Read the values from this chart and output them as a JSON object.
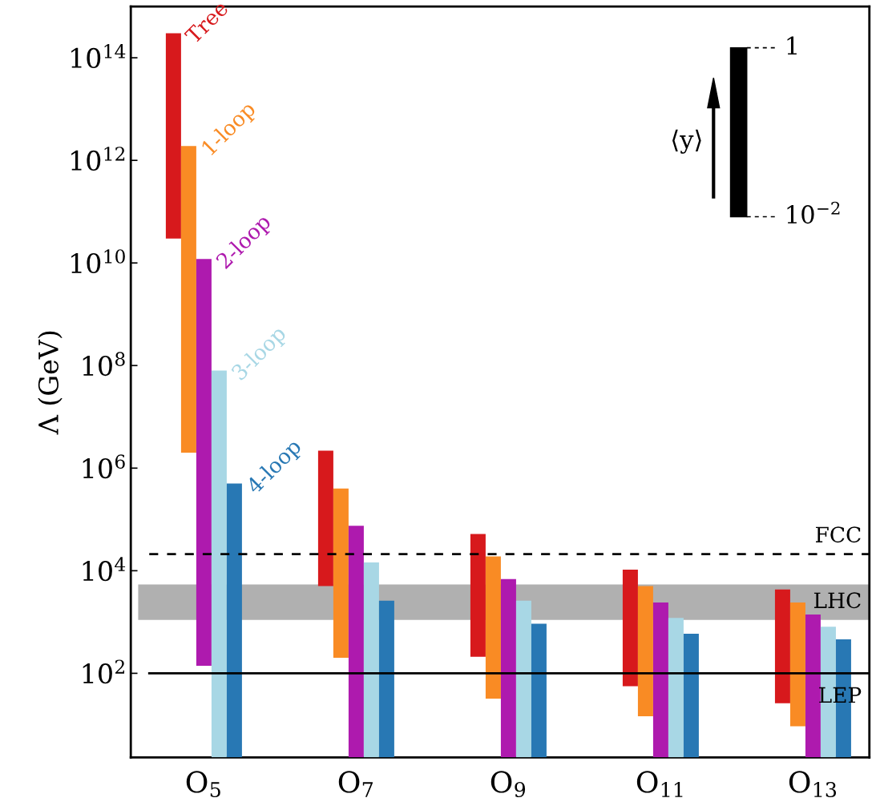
{
  "chart_data": {
    "type": "bar",
    "ylabel": "Λ (GeV)",
    "categories": [
      "O$_{5}$",
      "O$_{7}$",
      "O$_{9}$",
      "O$_{11}$",
      "O$_{13}$"
    ],
    "series": [
      {
        "name": "Tree",
        "color": "#d7191c",
        "base": [
          30000000000.0,
          5000,
          210,
          56,
          26
        ],
        "values": [
          299970000000000,
          2195000,
          51790,
          10444,
          4274
        ]
      },
      {
        "name": "1-loop",
        "color": "#f98b24",
        "base": [
          2000000,
          200,
          32,
          14.5,
          9.3
        ],
        "values": [
          1899998000000,
          399800,
          18968,
          4985.5,
          2390.7
        ]
      },
      {
        "name": "2-loop",
        "color": "#ae1aae",
        "base": [
          140,
          2.3,
          2.3,
          2.3,
          2.3
        ],
        "values": [
          11999999860,
          74997.7,
          6897.7,
          2397.7,
          1397.7
        ]
      },
      {
        "name": "3-loop",
        "color": "#a8d7e5",
        "base": [
          2.3,
          2.3,
          2.3,
          2.3,
          2.3
        ],
        "values": [
          79999997.7,
          14497.7,
          2597.7,
          1197.7,
          807.7
        ]
      },
      {
        "name": "4-loop",
        "color": "#2878b4",
        "base": [
          2.3,
          2.3,
          2.3,
          2.3,
          2.3
        ],
        "values": [
          499997.7,
          2597.7,
          927.7,
          587.7,
          457.7
        ]
      }
    ],
    "log": "y",
    "ylim": [
      2.3,
      1000000000000000.0
    ],
    "yticks": [
      {
        "value": 100,
        "label": "10$^{2}$"
      },
      {
        "value": 10000,
        "label": "10$^{4}$"
      },
      {
        "value": 1000000,
        "label": "10$^{6}$"
      },
      {
        "value": 100000000,
        "label": "10$^{8}$"
      },
      {
        "value": 10000000000,
        "label": "10$^{10}$"
      },
      {
        "value": 1000000000000,
        "label": "10$^{12}$"
      },
      {
        "value": 100000000000000,
        "label": "10$^{14}$"
      }
    ],
    "ref_lines": [
      {
        "axis": "y",
        "value": 21000,
        "label": "FCC",
        "color": "#000000",
        "line_style": "dashed"
      },
      {
        "axis": "y",
        "value": 100,
        "label": "LEP",
        "color": "#000000",
        "line_style": "solid"
      }
    ],
    "bands": [
      {
        "axis": "y",
        "from": 1100,
        "to": 5400,
        "label": "LHC",
        "color": "#b0b0b0"
      }
    ],
    "annotations": [
      "1",
      "10$^{−2}$",
      "⟨y⟩"
    ],
    "grid": false
  }
}
